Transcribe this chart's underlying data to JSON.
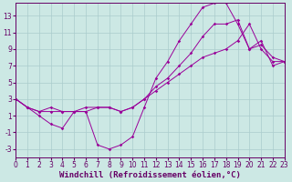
{
  "background_color": "#cce8e4",
  "grid_color": "#aacccc",
  "line_color": "#990099",
  "spine_color": "#660066",
  "text_color": "#660066",
  "line1_x": [
    0,
    1,
    2,
    3,
    4,
    5,
    6,
    7,
    8,
    9,
    10,
    11,
    12,
    13,
    14,
    15,
    16,
    17,
    18,
    19,
    20,
    21,
    22,
    23
  ],
  "line1_y": [
    3,
    2,
    1,
    0,
    -0.5,
    1.5,
    1.5,
    -2.5,
    -3,
    -2.5,
    -1.5,
    2,
    5.5,
    7.5,
    10,
    12,
    14,
    14.5,
    14.5,
    12,
    9,
    10,
    7,
    7.5
  ],
  "line2_x": [
    0,
    1,
    2,
    3,
    4,
    5,
    6,
    7,
    8,
    9,
    10,
    11,
    12,
    13,
    14,
    15,
    16,
    17,
    18,
    19,
    20,
    21,
    22,
    23
  ],
  "line2_y": [
    3,
    2,
    1.5,
    1.5,
    1.5,
    1.5,
    2,
    2,
    2,
    1.5,
    2,
    3,
    4.5,
    5.5,
    7,
    8.5,
    10.5,
    12,
    12,
    12.5,
    9,
    9.5,
    8,
    7.5
  ],
  "line3_x": [
    0,
    1,
    2,
    3,
    4,
    5,
    6,
    7,
    8,
    9,
    10,
    11,
    12,
    13,
    14,
    15,
    16,
    17,
    18,
    19,
    20,
    21,
    22,
    23
  ],
  "line3_y": [
    3,
    2,
    1.5,
    2,
    1.5,
    1.5,
    1.5,
    2,
    2,
    1.5,
    2,
    3,
    4,
    5,
    6,
    7,
    8,
    8.5,
    9,
    10,
    12,
    9,
    7.5,
    7.5
  ],
  "xlim": [
    0,
    23
  ],
  "ylim": [
    -4,
    14.5
  ],
  "xticks": [
    0,
    1,
    2,
    3,
    4,
    5,
    6,
    7,
    8,
    9,
    10,
    11,
    12,
    13,
    14,
    15,
    16,
    17,
    18,
    19,
    20,
    21,
    22,
    23
  ],
  "yticks": [
    -3,
    -1,
    1,
    3,
    5,
    7,
    9,
    11,
    13
  ],
  "xlabel": "Windchill (Refroidissement éolien,°C)",
  "xlabel_fontsize": 6.5,
  "tick_fontsize": 5.5,
  "marker": "D",
  "marker_size": 1.8,
  "linewidth": 0.7
}
